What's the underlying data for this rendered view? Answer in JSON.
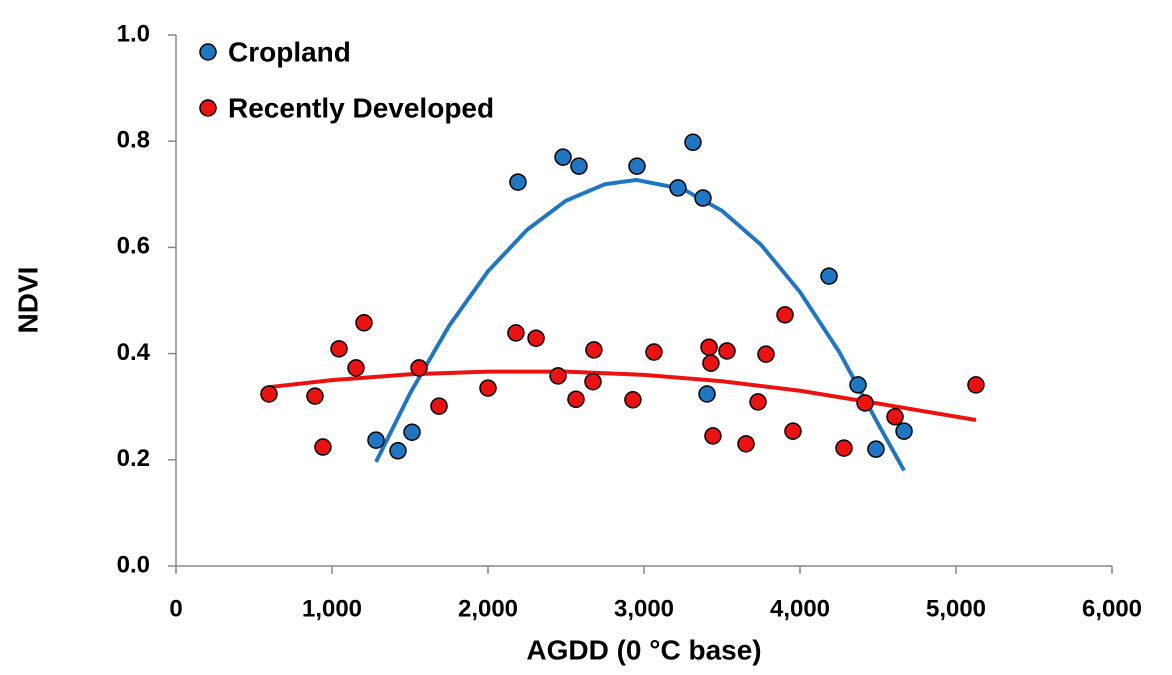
{
  "chart_data": {
    "type": "scatter",
    "x_label": "AGDD (0 °C base)",
    "y_label": "NDVI",
    "xlim": [
      0,
      6000
    ],
    "ylim": [
      0,
      1
    ],
    "xticks": [
      0,
      {
        "value": 1000,
        "label": "1,000"
      },
      {
        "value": 2000,
        "label": "2,000"
      },
      {
        "value": 3000,
        "label": "3,000"
      },
      {
        "value": 4000,
        "label": "4,000"
      },
      {
        "value": 5000,
        "label": "5,000"
      },
      {
        "value": 6000,
        "label": "6,000"
      }
    ],
    "yticks": [
      {
        "value": 0,
        "label": "0.0"
      },
      0.2,
      0.4,
      0.6,
      0.8,
      {
        "value": 1,
        "label": "1.0"
      }
    ],
    "grid": false,
    "legend": "top-left",
    "series": [
      {
        "name": "Cropland",
        "color": "#1f77c4",
        "x": [
          1282,
          1423,
          1513,
          2192,
          2481,
          2583,
          2955,
          3314,
          3218,
          3378,
          3404,
          4186,
          4372,
          4487,
          4667
        ],
        "values": [
          0.237,
          0.217,
          0.252,
          0.723,
          0.77,
          0.753,
          0.753,
          0.798,
          0.712,
          0.693,
          0.324,
          0.546,
          0.341,
          0.22,
          0.254
        ]
      },
      {
        "name": "Recently Developed",
        "color": "#ee1111",
        "x": [
          596,
          891,
          942,
          1045,
          1154,
          1205,
          1558,
          1686,
          2000,
          2179,
          2308,
          2449,
          2564,
          2679,
          2673,
          2929,
          3064,
          3417,
          3429,
          3442,
          3532,
          3654,
          3731,
          3782,
          3904,
          3955,
          4282,
          4417,
          4609,
          5128
        ],
        "values": [
          0.324,
          0.32,
          0.224,
          0.409,
          0.373,
          0.458,
          0.373,
          0.301,
          0.335,
          0.439,
          0.429,
          0.358,
          0.314,
          0.407,
          0.347,
          0.313,
          0.403,
          0.412,
          0.382,
          0.245,
          0.405,
          0.23,
          0.309,
          0.399,
          0.473,
          0.254,
          0.222,
          0.307,
          0.281,
          0.341
        ]
      }
    ],
    "trendlines": [
      {
        "color": "#1f77c4",
        "x": [
          1282,
          1500,
          1750,
          2000,
          2250,
          2500,
          2750,
          2950,
          3250,
          3500,
          3750,
          4000,
          4250,
          4500,
          4667
        ],
        "values": [
          0.196,
          0.325,
          0.452,
          0.555,
          0.633,
          0.688,
          0.719,
          0.727,
          0.71,
          0.669,
          0.605,
          0.516,
          0.404,
          0.268,
          0.18
        ]
      },
      {
        "color": "#ee1111",
        "x": [
          600,
          1000,
          1500,
          2000,
          2500,
          3000,
          3500,
          4000,
          4500,
          5128
        ],
        "values": [
          0.337,
          0.35,
          0.361,
          0.366,
          0.366,
          0.36,
          0.348,
          0.33,
          0.306,
          0.275
        ]
      }
    ]
  }
}
